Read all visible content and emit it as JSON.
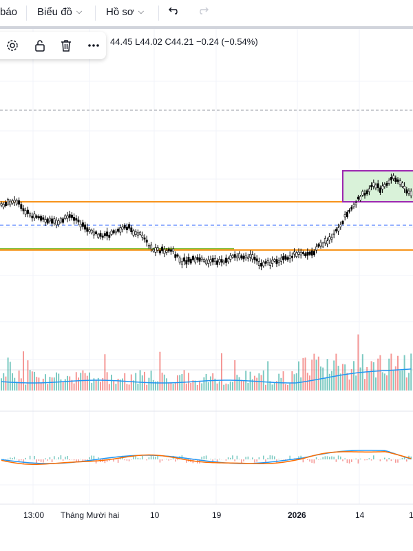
{
  "topbar": {
    "alert_label": "báo",
    "chart_menu_label": "Biểu đồ",
    "profile_menu_label": "Hồ sơ",
    "undo_icon": "undo-icon",
    "redo_icon": "redo-icon"
  },
  "drawing_toolbar": {
    "icons": [
      "gear-icon",
      "unlock-icon",
      "trash-icon",
      "more-icon"
    ]
  },
  "legend": {
    "ohlc_text": "44.45  L44.02  C44.21  −0.24 (−0.54%)"
  },
  "colors": {
    "up_candle": "#ffffff",
    "down_candle": "#000000",
    "horizontal_line": "#f7931a",
    "dashed_line": "#2962ff",
    "range_box_fill": "#d9f2d9",
    "range_box_border": "#9c27b0",
    "volume_up": "#26a69a",
    "volume_down": "#ef5350",
    "volume_ma": "#2196f3",
    "macd_line": "#2196f3",
    "signal_line": "#ff6d00"
  },
  "x_axis": {
    "ticks": [
      "13:00",
      "Tháng Mười hai",
      "10",
      "19",
      "2026",
      "14",
      "1"
    ]
  }
}
